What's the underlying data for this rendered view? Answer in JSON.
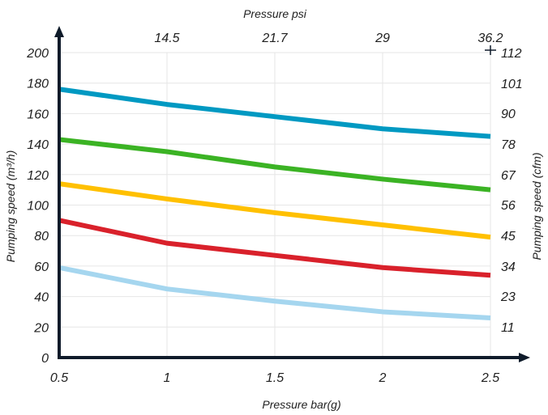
{
  "chart_data": {
    "type": "line",
    "xlabel": "Pressure bar(g)",
    "xlabel_top": "Pressure psi",
    "ylabel": "Pumping speed (m³/h)",
    "ylabel_right": "Pumping speed (cfm)",
    "xlim": [
      0.5,
      2.5
    ],
    "ylim": [
      0,
      200
    ],
    "x_ticks": [
      "0.5",
      "1",
      "1.5",
      "2",
      "2.5"
    ],
    "x_top_ticks": [
      "14.5",
      "21.7",
      "29",
      "36.2"
    ],
    "y_ticks": [
      "0",
      "20",
      "40",
      "60",
      "80",
      "100",
      "120",
      "140",
      "160",
      "180",
      "200"
    ],
    "y_right_ticks": [
      "11",
      "23",
      "34",
      "45",
      "56",
      "67",
      "78",
      "90",
      "101",
      "112"
    ],
    "grid": true,
    "x": [
      0.5,
      1.0,
      1.5,
      2.0,
      2.5
    ],
    "series": [
      {
        "color": "#0099c2",
        "values": [
          176,
          166,
          158,
          150,
          145
        ]
      },
      {
        "color": "#3bb324",
        "values": [
          143,
          135,
          125,
          117,
          110
        ]
      },
      {
        "color": "#ffc000",
        "values": [
          114,
          104,
          95,
          87,
          79
        ]
      },
      {
        "color": "#d9212b",
        "values": [
          90,
          75,
          67,
          59,
          54
        ]
      },
      {
        "color": "#a5d6ef",
        "values": [
          59,
          45,
          37,
          30,
          26
        ]
      }
    ]
  }
}
